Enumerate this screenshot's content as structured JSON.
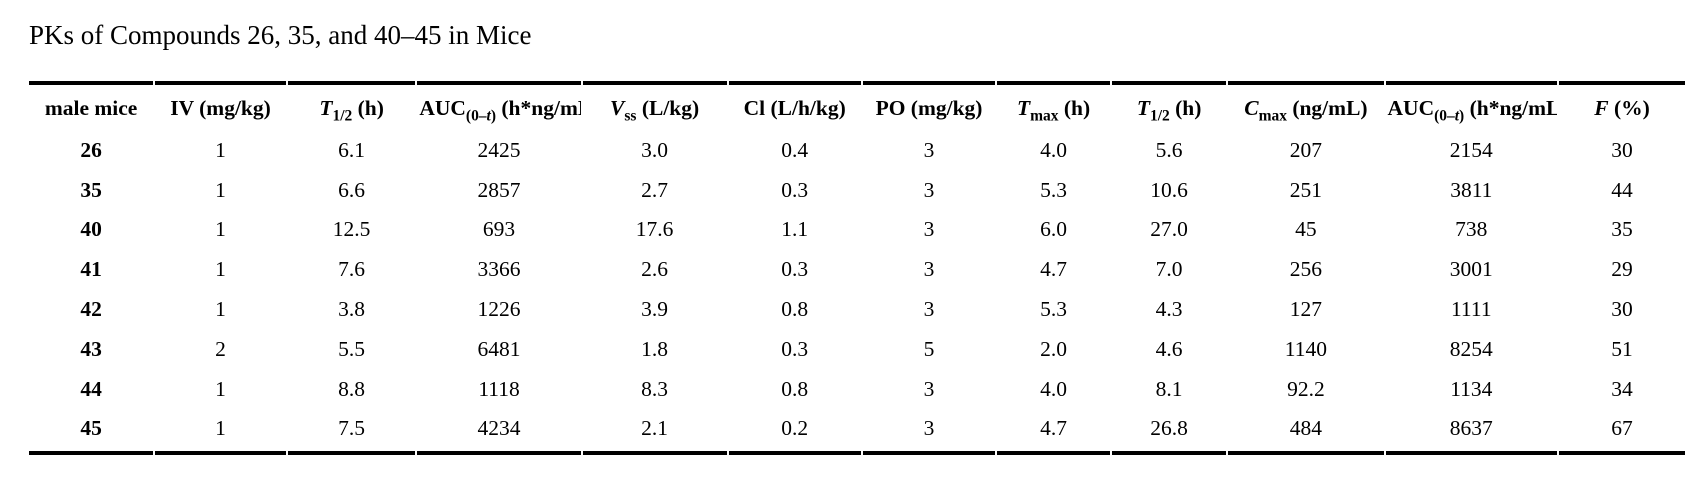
{
  "title": "PKs of Compounds 26, 35, and 40–45 in Mice",
  "table": {
    "columns": [
      {
        "name": "male-mice",
        "segments": [
          {
            "t": "male mice"
          }
        ]
      },
      {
        "name": "iv-dose",
        "segments": [
          {
            "t": "IV (mg/kg)"
          }
        ]
      },
      {
        "name": "t-half-iv",
        "segments": [
          {
            "t": "T",
            "i": true
          },
          {
            "t": "1/2",
            "sub": true
          },
          {
            "t": " (h)"
          }
        ]
      },
      {
        "name": "auc-iv",
        "segments": [
          {
            "t": "AUC"
          },
          {
            "t": "(0–",
            "sub": true
          },
          {
            "t": "t",
            "sub": true,
            "i": true
          },
          {
            "t": ")",
            "sub": true
          },
          {
            "t": " (h*ng/mL)"
          }
        ]
      },
      {
        "name": "vss",
        "segments": [
          {
            "t": "V",
            "i": true
          },
          {
            "t": "ss",
            "sub": true
          },
          {
            "t": " (L/kg)"
          }
        ]
      },
      {
        "name": "cl",
        "segments": [
          {
            "t": "Cl (L/h/kg)"
          }
        ]
      },
      {
        "name": "po-dose",
        "segments": [
          {
            "t": "PO (mg/kg)"
          }
        ]
      },
      {
        "name": "tmax",
        "segments": [
          {
            "t": "T",
            "i": true
          },
          {
            "t": "max",
            "sub": true
          },
          {
            "t": " (h)"
          }
        ]
      },
      {
        "name": "t-half-po",
        "segments": [
          {
            "t": "T",
            "i": true
          },
          {
            "t": "1/2",
            "sub": true
          },
          {
            "t": " (h)"
          }
        ]
      },
      {
        "name": "cmax",
        "segments": [
          {
            "t": "C",
            "i": true
          },
          {
            "t": "max",
            "sub": true
          },
          {
            "t": " (ng/mL)"
          }
        ]
      },
      {
        "name": "auc-po",
        "segments": [
          {
            "t": "AUC"
          },
          {
            "t": "(0–",
            "sub": true
          },
          {
            "t": "t",
            "sub": true,
            "i": true
          },
          {
            "t": ")",
            "sub": true
          },
          {
            "t": " (h*ng/mL)"
          }
        ]
      },
      {
        "name": "f-percent",
        "segments": [
          {
            "t": "F",
            "i": true
          },
          {
            "t": " (%)"
          }
        ]
      }
    ],
    "rows": [
      {
        "compound": "26",
        "values": [
          "1",
          "6.1",
          "2425",
          "3.0",
          "0.4",
          "3",
          "4.0",
          "5.6",
          "207",
          "2154",
          "30"
        ]
      },
      {
        "compound": "35",
        "values": [
          "1",
          "6.6",
          "2857",
          "2.7",
          "0.3",
          "3",
          "5.3",
          "10.6",
          "251",
          "3811",
          "44"
        ]
      },
      {
        "compound": "40",
        "values": [
          "1",
          "12.5",
          "693",
          "17.6",
          "1.1",
          "3",
          "6.0",
          "27.0",
          "45",
          "738",
          "35"
        ]
      },
      {
        "compound": "41",
        "values": [
          "1",
          "7.6",
          "3366",
          "2.6",
          "0.3",
          "3",
          "4.7",
          "7.0",
          "256",
          "3001",
          "29"
        ]
      },
      {
        "compound": "42",
        "values": [
          "1",
          "3.8",
          "1226",
          "3.9",
          "0.8",
          "3",
          "5.3",
          "4.3",
          "127",
          "1111",
          "30"
        ]
      },
      {
        "compound": "43",
        "values": [
          "2",
          "5.5",
          "6481",
          "1.8",
          "0.3",
          "5",
          "2.0",
          "4.6",
          "1140",
          "8254",
          "51"
        ]
      },
      {
        "compound": "44",
        "values": [
          "1",
          "8.8",
          "1118",
          "8.3",
          "0.8",
          "3",
          "4.0",
          "8.1",
          "92.2",
          "1134",
          "34"
        ]
      },
      {
        "compound": "45",
        "values": [
          "1",
          "7.5",
          "4234",
          "2.1",
          "0.2",
          "3",
          "4.7",
          "26.8",
          "484",
          "8637",
          "67"
        ]
      }
    ]
  },
  "colors": {
    "text": "#000000",
    "background": "#ffffff",
    "rule": "#000000"
  }
}
